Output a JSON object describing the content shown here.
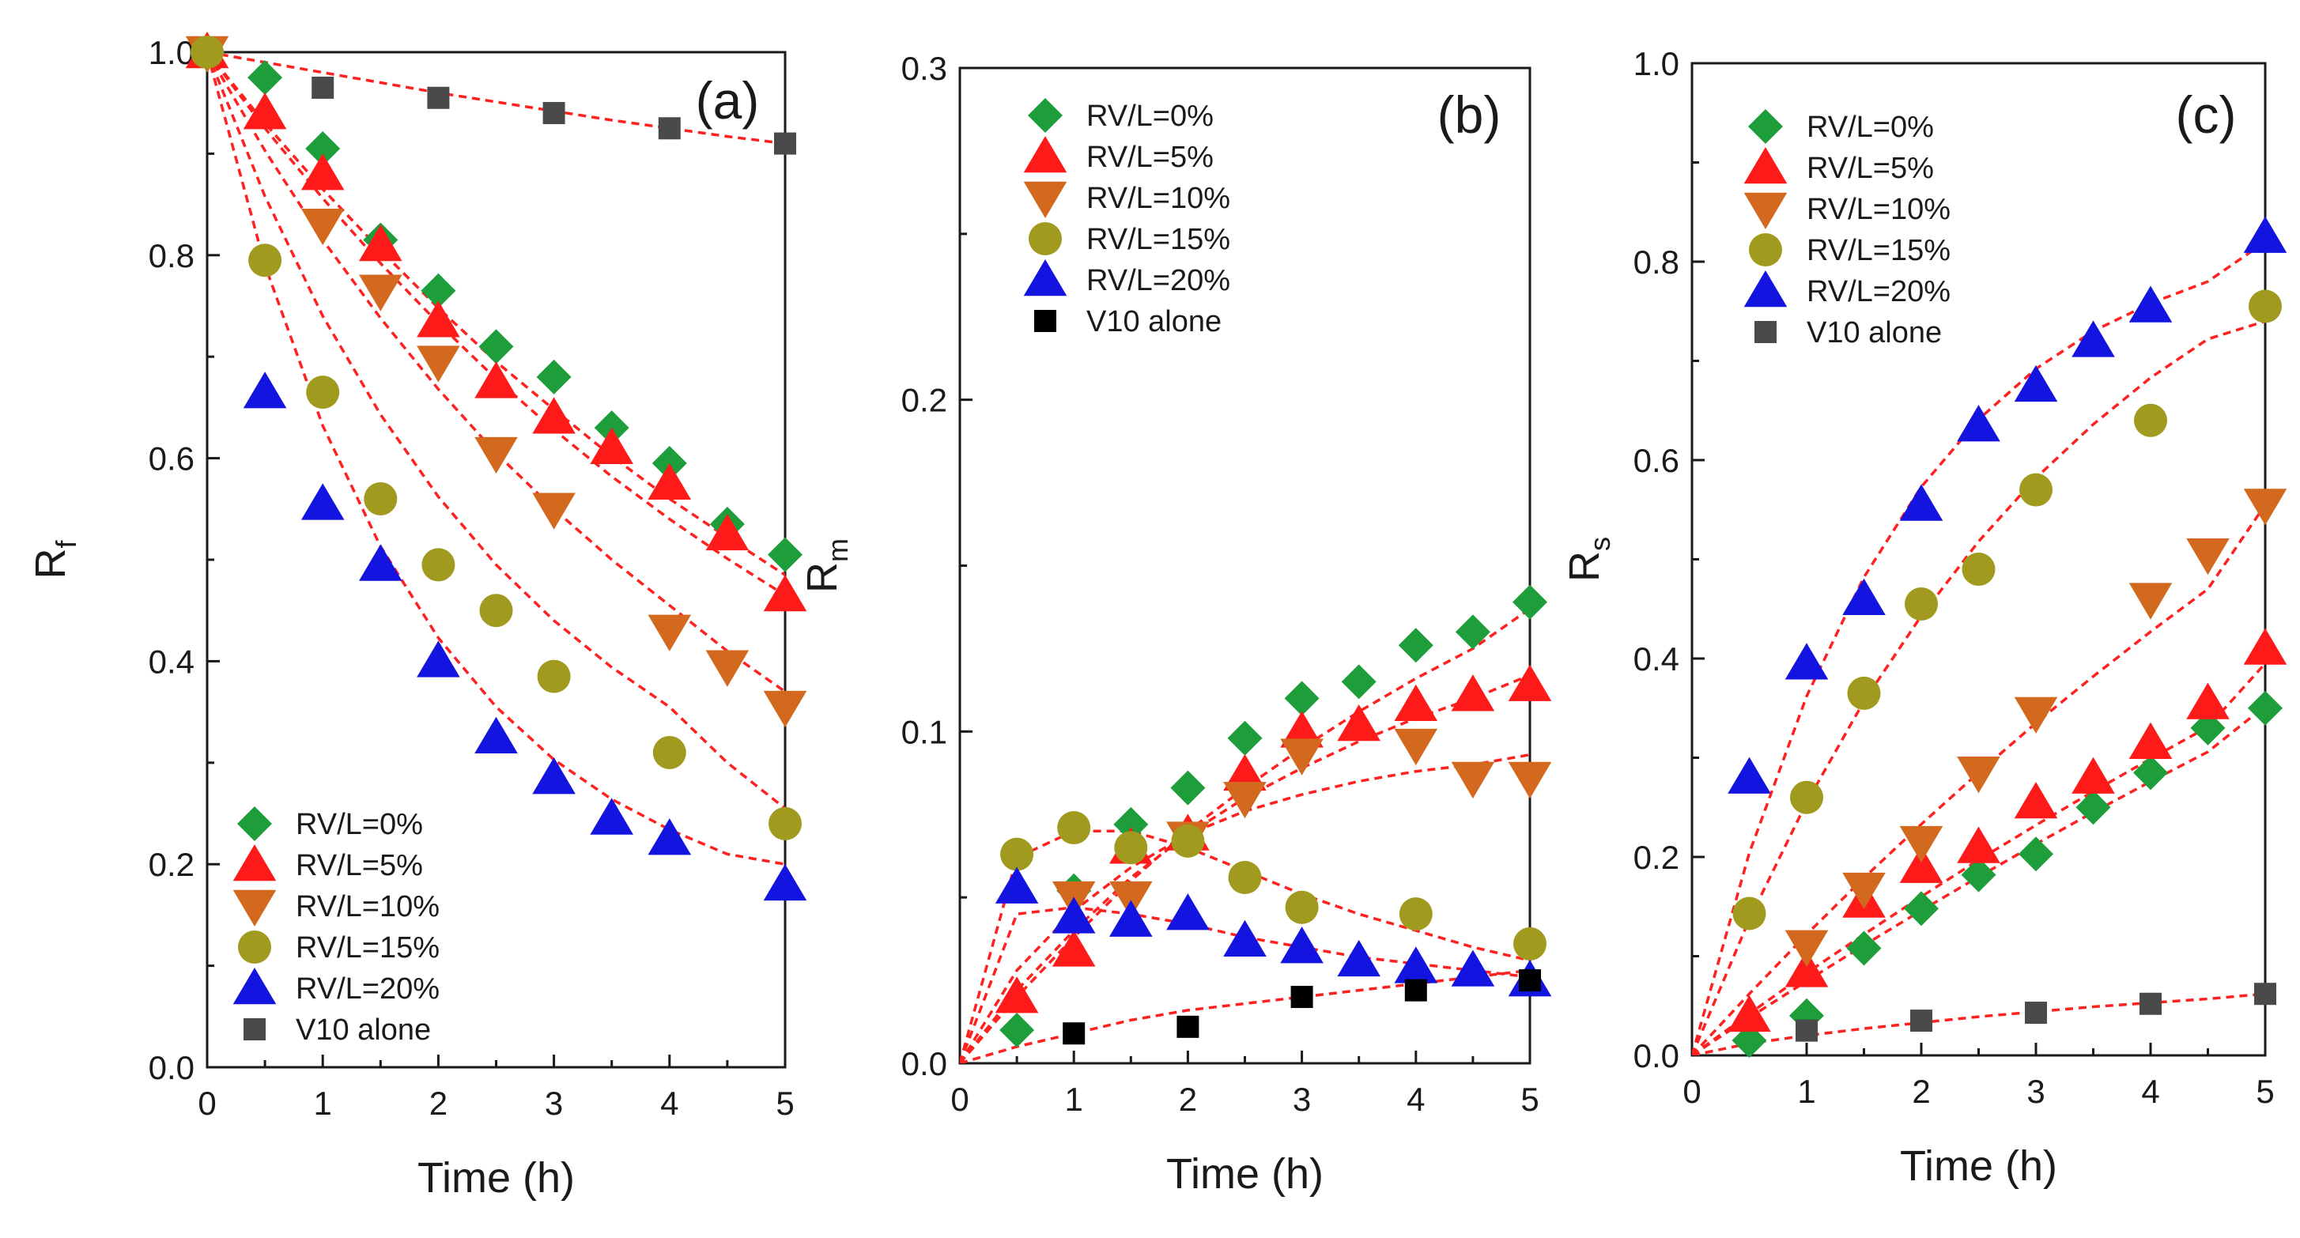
{
  "chart_data": [
    {
      "type": "scatter",
      "panel_label": "(a)",
      "xlabel": "Time (h)",
      "ylabel": "R",
      "ylabel_sub": "f",
      "xlim": [
        0,
        5
      ],
      "ylim": [
        0,
        1.0
      ],
      "xticks": [
        "0",
        "1",
        "2",
        "3",
        "4",
        "5"
      ],
      "yticks": [
        "0.0",
        "0.2",
        "0.4",
        "0.6",
        "0.8",
        "1.0"
      ],
      "legend_position": "bottom-left",
      "series": [
        {
          "name": "RV/L=0%",
          "marker": "diamond",
          "color": "#1e9e3a",
          "x": [
            0,
            0.5,
            1,
            1.5,
            2,
            2.5,
            3,
            3.5,
            4,
            4.5,
            5
          ],
          "y": [
            1.0,
            0.975,
            0.905,
            0.815,
            0.765,
            0.71,
            0.68,
            0.63,
            0.595,
            0.535,
            0.505
          ],
          "fit": [
            1.0,
            0.93,
            0.865,
            0.805,
            0.748,
            0.695,
            0.648,
            0.602,
            0.56,
            0.522,
            0.485
          ]
        },
        {
          "name": "RV/L=5%",
          "marker": "triangle-up",
          "color": "#ff1a1a",
          "x": [
            0,
            0.5,
            1,
            1.5,
            2,
            2.5,
            3,
            3.5,
            4,
            4.5,
            5
          ],
          "y": [
            1.0,
            0.94,
            0.88,
            0.81,
            0.735,
            0.675,
            0.64,
            0.61,
            0.575,
            0.525,
            0.465
          ],
          "fit": [
            1.0,
            0.925,
            0.856,
            0.792,
            0.733,
            0.678,
            0.628,
            0.582,
            0.54,
            0.501,
            0.465
          ]
        },
        {
          "name": "RV/L=10%",
          "marker": "triangle-down",
          "color": "#d2691e",
          "x": [
            0,
            1,
            1.5,
            2,
            2.5,
            3,
            4,
            4.5,
            5
          ],
          "y": [
            1.0,
            0.83,
            0.765,
            0.695,
            0.605,
            0.55,
            0.43,
            0.395,
            0.355
          ],
          "fit": [
            1.0,
            0.903,
            0.815,
            0.738,
            0.668,
            0.605,
            0.55,
            0.5,
            0.455,
            0.41,
            0.37
          ]
        },
        {
          "name": "RV/L=15%",
          "marker": "circle",
          "color": "#a09a1e",
          "x": [
            0,
            0.5,
            1,
            1.5,
            2,
            2.5,
            3,
            4,
            5
          ],
          "y": [
            1.0,
            0.795,
            0.665,
            0.56,
            0.495,
            0.45,
            0.385,
            0.31,
            0.24
          ],
          "fit": [
            1.0,
            0.858,
            0.74,
            0.643,
            0.562,
            0.495,
            0.44,
            0.394,
            0.355,
            0.3,
            0.255
          ]
        },
        {
          "name": "RV/L=20%",
          "marker": "triangle-up",
          "color": "#1414e0",
          "x": [
            0.5,
            1,
            1.5,
            2,
            2.5,
            3,
            3.5,
            4,
            5
          ],
          "y": [
            0.665,
            0.555,
            0.495,
            0.4,
            0.325,
            0.285,
            0.245,
            0.225,
            0.18
          ],
          "fit": [
            1.0,
            0.79,
            0.632,
            0.513,
            0.423,
            0.355,
            0.303,
            0.264,
            0.234,
            0.21,
            0.2
          ]
        },
        {
          "name": "V10 alone",
          "marker": "square",
          "color": "#4a4a4a",
          "x": [
            1,
            2,
            3,
            4,
            5
          ],
          "y": [
            0.965,
            0.955,
            0.94,
            0.925,
            0.91
          ],
          "fit": [
            1.0,
            0.99,
            0.98,
            0.97,
            0.96,
            0.951,
            0.942,
            0.933,
            0.925,
            0.917,
            0.91
          ]
        }
      ]
    },
    {
      "type": "scatter",
      "panel_label": "(b)",
      "xlabel": "Time (h)",
      "ylabel": "R",
      "ylabel_sub": "m",
      "xlim": [
        0,
        5
      ],
      "ylim": [
        0,
        0.3
      ],
      "xticks": [
        "0",
        "1",
        "2",
        "3",
        "4",
        "5"
      ],
      "yticks": [
        "0.0",
        "0.1",
        "0.2",
        "0.3"
      ],
      "legend_position": "top-left",
      "series": [
        {
          "name": "RV/L=0%",
          "marker": "diamond",
          "color": "#1e9e3a",
          "x": [
            0.5,
            1,
            1.5,
            2,
            2.5,
            3,
            3.5,
            4,
            4.5,
            5
          ],
          "y": [
            0.01,
            0.052,
            0.072,
            0.083,
            0.098,
            0.11,
            0.115,
            0.126,
            0.13,
            0.139
          ],
          "fit": [
            0,
            0.02,
            0.038,
            0.055,
            0.07,
            0.083,
            0.095,
            0.106,
            0.116,
            0.125,
            0.137
          ]
        },
        {
          "name": "RV/L=5%",
          "marker": "triangle-up",
          "color": "#ff1a1a",
          "x": [
            0.5,
            1,
            1.5,
            2,
            2.5,
            3,
            3.5,
            4,
            4.5,
            5
          ],
          "y": [
            0.02,
            0.034,
            0.065,
            0.069,
            0.087,
            0.1,
            0.102,
            0.108,
            0.111,
            0.114
          ],
          "fit": [
            0,
            0.022,
            0.04,
            0.056,
            0.069,
            0.08,
            0.089,
            0.097,
            0.104,
            0.11,
            0.117
          ]
        },
        {
          "name": "RV/L=10%",
          "marker": "triangle-down",
          "color": "#d2691e",
          "x": [
            1,
            1.5,
            2,
            2.5,
            3,
            4,
            4.5,
            5
          ],
          "y": [
            0.05,
            0.05,
            0.068,
            0.08,
            0.093,
            0.096,
            0.086,
            0.086
          ],
          "fit": [
            0,
            0.028,
            0.046,
            0.059,
            0.069,
            0.076,
            0.081,
            0.085,
            0.088,
            0.09,
            0.093
          ]
        },
        {
          "name": "RV/L=15%",
          "marker": "circle",
          "color": "#a09a1e",
          "x": [
            0.5,
            1,
            1.5,
            2,
            2.5,
            3,
            4,
            5
          ],
          "y": [
            0.063,
            0.071,
            0.065,
            0.067,
            0.056,
            0.047,
            0.045,
            0.036
          ],
          "fit": [
            0,
            0.062,
            0.07,
            0.07,
            0.065,
            0.058,
            0.051,
            0.045,
            0.04,
            0.035,
            0.031
          ]
        },
        {
          "name": "RV/L=20%",
          "marker": "triangle-up",
          "color": "#1414e0",
          "x": [
            0.5,
            1,
            1.5,
            2,
            2.5,
            3,
            3.5,
            4,
            4.5,
            5
          ],
          "y": [
            0.053,
            0.044,
            0.043,
            0.045,
            0.037,
            0.035,
            0.031,
            0.029,
            0.028,
            0.025
          ],
          "fit": [
            0,
            0.045,
            0.047,
            0.045,
            0.042,
            0.038,
            0.035,
            0.032,
            0.03,
            0.028,
            0.026
          ]
        },
        {
          "name": "V10 alone",
          "marker": "square",
          "color": "#000000",
          "x": [
            1,
            2,
            3,
            4,
            5
          ],
          "y": [
            0.009,
            0.011,
            0.02,
            0.022,
            0.025
          ],
          "fit": [
            0,
            0.005,
            0.009,
            0.013,
            0.016,
            0.018,
            0.02,
            0.022,
            0.024,
            0.026,
            0.028
          ]
        }
      ]
    },
    {
      "type": "scatter",
      "panel_label": "(c)",
      "xlabel": "Time (h)",
      "ylabel": "R",
      "ylabel_sub": "s",
      "xlim": [
        0,
        5
      ],
      "ylim": [
        0,
        1.0
      ],
      "xticks": [
        "0",
        "1",
        "2",
        "3",
        "4",
        "5"
      ],
      "yticks": [
        "0.0",
        "0.2",
        "0.4",
        "0.6",
        "0.8",
        "1.0"
      ],
      "legend_position": "top-left",
      "series": [
        {
          "name": "RV/L=0%",
          "marker": "diamond",
          "color": "#1e9e3a",
          "x": [
            0.5,
            1,
            1.5,
            2,
            2.5,
            3,
            3.5,
            4,
            4.5,
            5
          ],
          "y": [
            0.015,
            0.04,
            0.108,
            0.148,
            0.182,
            0.203,
            0.25,
            0.285,
            0.33,
            0.35
          ],
          "fit": [
            0,
            0.038,
            0.075,
            0.111,
            0.146,
            0.18,
            0.213,
            0.245,
            0.276,
            0.306,
            0.352
          ]
        },
        {
          "name": "RV/L=5%",
          "marker": "triangle-up",
          "color": "#ff1a1a",
          "x": [
            0.5,
            1,
            1.5,
            2,
            2.5,
            3,
            3.5,
            4,
            4.5,
            5
          ],
          "y": [
            0.04,
            0.085,
            0.155,
            0.19,
            0.21,
            0.255,
            0.28,
            0.315,
            0.355,
            0.41
          ],
          "fit": [
            0,
            0.042,
            0.083,
            0.122,
            0.16,
            0.197,
            0.232,
            0.266,
            0.299,
            0.331,
            0.395
          ]
        },
        {
          "name": "RV/L=10%",
          "marker": "triangle-down",
          "color": "#d2691e",
          "x": [
            1,
            1.5,
            2,
            2.5,
            3,
            4,
            4.5,
            5
          ],
          "y": [
            0.11,
            0.168,
            0.215,
            0.285,
            0.345,
            0.46,
            0.505,
            0.555
          ],
          "fit": [
            0,
            0.062,
            0.122,
            0.179,
            0.233,
            0.285,
            0.335,
            0.382,
            0.427,
            0.47,
            0.555
          ]
        },
        {
          "name": "RV/L=15%",
          "marker": "circle",
          "color": "#a09a1e",
          "x": [
            0.5,
            1,
            1.5,
            2,
            2.5,
            3,
            4,
            5
          ],
          "y": [
            0.143,
            0.26,
            0.365,
            0.455,
            0.49,
            0.57,
            0.64,
            0.755
          ],
          "fit": [
            0,
            0.137,
            0.255,
            0.357,
            0.443,
            0.518,
            0.582,
            0.636,
            0.683,
            0.722,
            0.74
          ]
        },
        {
          "name": "RV/L=20%",
          "marker": "triangle-up",
          "color": "#1414e0",
          "x": [
            0.5,
            1,
            1.5,
            2,
            2.5,
            3,
            3.5,
            4,
            5
          ],
          "y": [
            0.28,
            0.395,
            0.46,
            0.555,
            0.635,
            0.675,
            0.72,
            0.755,
            0.825
          ],
          "fit": [
            0,
            0.204,
            0.362,
            0.482,
            0.573,
            0.641,
            0.692,
            0.73,
            0.758,
            0.78,
            0.82
          ]
        },
        {
          "name": "V10 alone",
          "marker": "square",
          "color": "#4a4a4a",
          "x": [
            1,
            2,
            3,
            4,
            5
          ],
          "y": [
            0.025,
            0.035,
            0.043,
            0.052,
            0.062
          ],
          "fit": [
            0,
            0.012,
            0.02,
            0.027,
            0.033,
            0.039,
            0.044,
            0.049,
            0.053,
            0.057,
            0.062
          ]
        }
      ]
    }
  ]
}
